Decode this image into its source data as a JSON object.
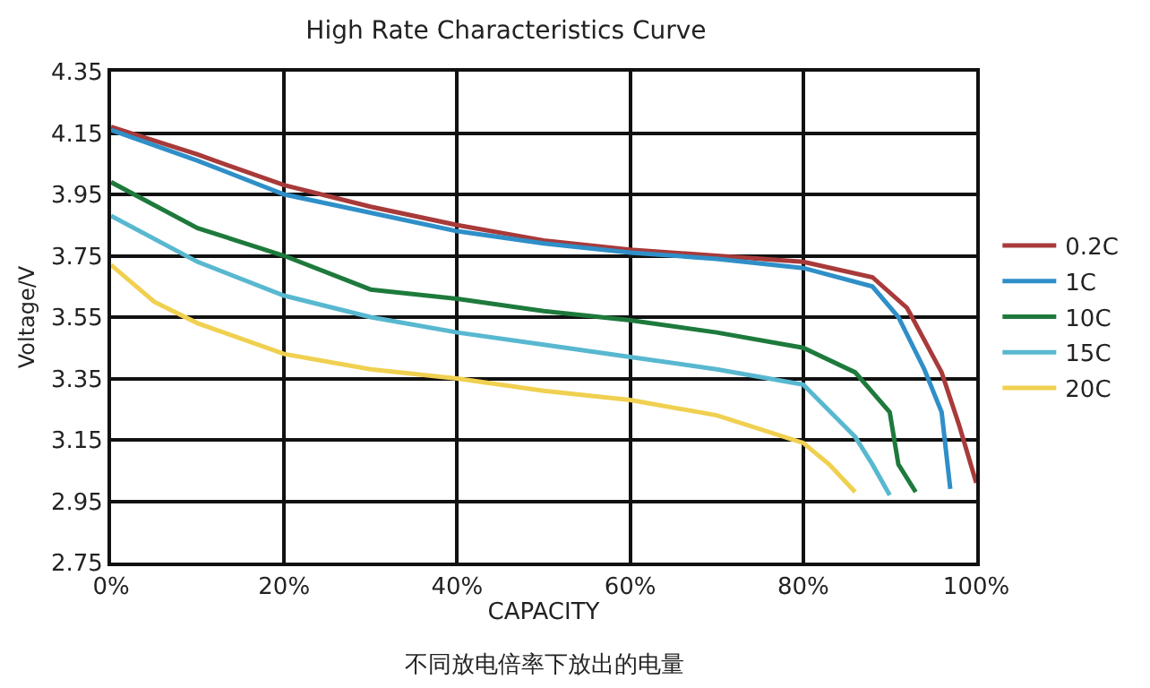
{
  "chart_data": {
    "type": "line",
    "title": "High Rate Characteristics Curve",
    "xlabel": "CAPACITY",
    "ylabel": "Voltage/V",
    "annotations": [
      "不同放电倍率下放出的电量"
    ],
    "xlim": [
      0,
      100
    ],
    "xticks": [
      {
        "value": 0,
        "label": "0%"
      },
      {
        "value": 20,
        "label": "20%"
      },
      {
        "value": 40,
        "label": "40%"
      },
      {
        "value": 60,
        "label": "60%"
      },
      {
        "value": 80,
        "label": "80%"
      },
      {
        "value": 100,
        "label": "100%"
      }
    ],
    "ylim": [
      2.75,
      4.35
    ],
    "yticks": [
      2.75,
      2.95,
      3.15,
      3.35,
      3.55,
      3.75,
      3.95,
      4.15,
      4.35
    ],
    "grid": true,
    "legend": "right",
    "marker": "none",
    "line_style": "solid",
    "series": [
      {
        "name": "0.2C",
        "color": "#a83a3a",
        "x": [
          0,
          10,
          20,
          30,
          40,
          50,
          60,
          70,
          80,
          88,
          92,
          96,
          98,
          100
        ],
        "values": [
          4.17,
          4.08,
          3.98,
          3.91,
          3.85,
          3.8,
          3.77,
          3.75,
          3.73,
          3.68,
          3.58,
          3.37,
          3.2,
          3.01
        ]
      },
      {
        "name": "1C",
        "color": "#2f8fc8",
        "x": [
          0,
          10,
          20,
          30,
          40,
          50,
          60,
          70,
          80,
          88,
          91,
          94,
          96,
          97
        ],
        "values": [
          4.16,
          4.06,
          3.95,
          3.89,
          3.83,
          3.79,
          3.76,
          3.74,
          3.71,
          3.65,
          3.55,
          3.38,
          3.24,
          2.99
        ]
      },
      {
        "name": "10C",
        "color": "#1e7a3c",
        "x": [
          0,
          10,
          20,
          30,
          40,
          50,
          60,
          70,
          80,
          86,
          90,
          91,
          93
        ],
        "values": [
          3.99,
          3.84,
          3.75,
          3.64,
          3.61,
          3.57,
          3.54,
          3.5,
          3.45,
          3.37,
          3.24,
          3.07,
          2.98
        ]
      },
      {
        "name": "15C",
        "color": "#58b8d0",
        "x": [
          0,
          10,
          20,
          30,
          40,
          50,
          60,
          70,
          80,
          86,
          88,
          90
        ],
        "values": [
          3.88,
          3.73,
          3.62,
          3.55,
          3.5,
          3.46,
          3.42,
          3.38,
          3.33,
          3.16,
          3.07,
          2.97
        ]
      },
      {
        "name": "20C",
        "color": "#f0d050",
        "x": [
          0,
          5,
          10,
          20,
          30,
          40,
          50,
          60,
          70,
          80,
          83,
          86
        ],
        "values": [
          3.72,
          3.6,
          3.53,
          3.43,
          3.38,
          3.35,
          3.31,
          3.28,
          3.23,
          3.14,
          3.07,
          2.98
        ]
      }
    ]
  }
}
